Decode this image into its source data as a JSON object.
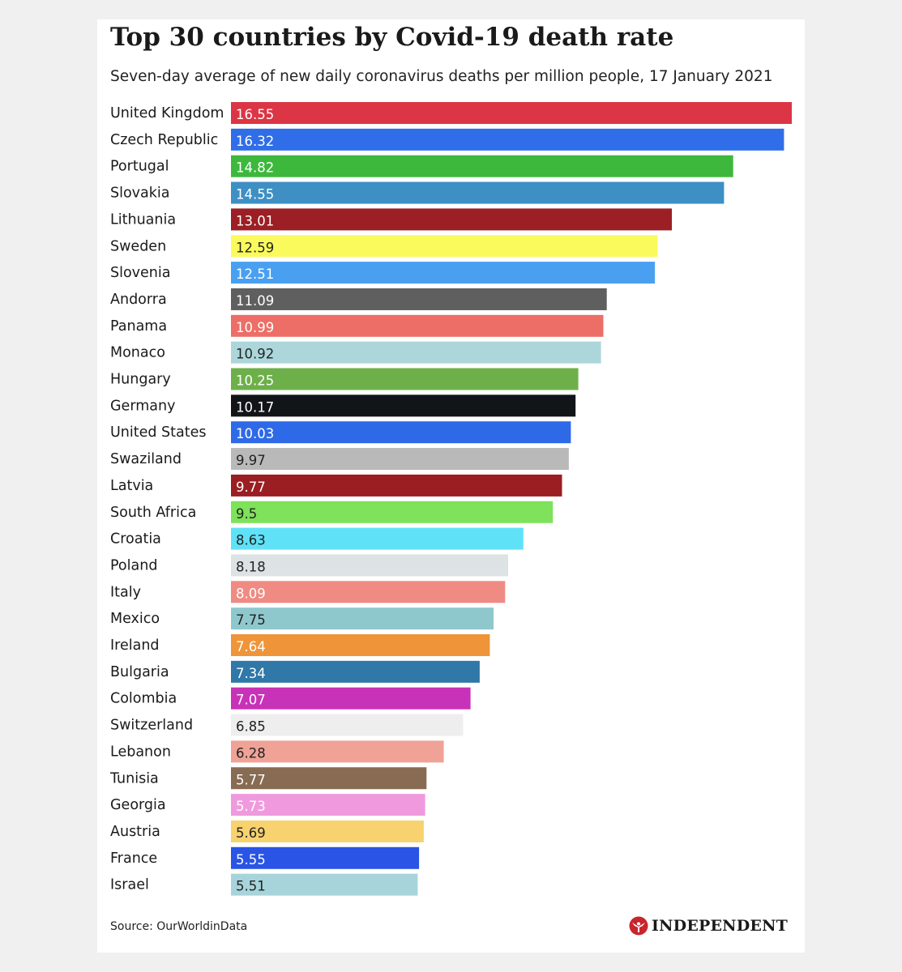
{
  "chart_data": {
    "type": "bar",
    "orientation": "horizontal",
    "title": "Top 30 countries by Covid-19 death rate",
    "subtitle": "Seven-day average of new daily coronavirus deaths per million people, 17 January 2021",
    "categories": [
      "United Kingdom",
      "Czech Republic",
      "Portugal",
      "Slovakia",
      "Lithuania",
      "Sweden",
      "Slovenia",
      "Andorra",
      "Panama",
      "Monaco",
      "Hungary",
      "Germany",
      "United States",
      "Swaziland",
      "Latvia",
      "South Africa",
      "Croatia",
      "Poland",
      "Italy",
      "Mexico",
      "Ireland",
      "Bulgaria",
      "Colombia",
      "Switzerland",
      "Lebanon",
      "Tunisia",
      "Georgia",
      "Austria",
      "France",
      "Israel"
    ],
    "values": [
      16.55,
      16.32,
      14.82,
      14.55,
      13.01,
      12.59,
      12.51,
      11.09,
      10.99,
      10.92,
      10.25,
      10.17,
      10.03,
      9.97,
      9.77,
      9.5,
      8.63,
      8.18,
      8.09,
      7.75,
      7.64,
      7.34,
      7.07,
      6.85,
      6.28,
      5.77,
      5.73,
      5.69,
      5.55,
      5.51
    ],
    "value_labels": [
      "16.55",
      "16.32",
      "14.82",
      "14.55",
      "13.01",
      "12.59",
      "12.51",
      "11.09",
      "10.99",
      "10.92",
      "10.25",
      "10.17",
      "10.03",
      "9.97",
      "9.77",
      "9.5",
      "8.63",
      "8.18",
      "8.09",
      "7.75",
      "7.64",
      "7.34",
      "7.07",
      "6.85",
      "6.28",
      "5.77",
      "5.73",
      "5.69",
      "5.55",
      "5.51"
    ],
    "colors": [
      "#dc3545",
      "#2f6ee8",
      "#3db83d",
      "#3d8fc4",
      "#9b1f24",
      "#fafa5c",
      "#4aa0f0",
      "#5f5f5f",
      "#ec6e66",
      "#acd6da",
      "#6db04a",
      "#121517",
      "#2e6ae8",
      "#b9b9b9",
      "#9a1e22",
      "#7ee25a",
      "#5fe2f7",
      "#dde2e4",
      "#ef8b82",
      "#8fc8cc",
      "#ef9438",
      "#2f78a8",
      "#c832b8",
      "#eeeeee",
      "#f0a296",
      "#876b52",
      "#f09ade",
      "#f7d26e",
      "#2954e6",
      "#a7d4da"
    ],
    "label_colors": [
      "#ffffff",
      "#ffffff",
      "#ffffff",
      "#ffffff",
      "#ffffff",
      "#222222",
      "#ffffff",
      "#ffffff",
      "#ffffff",
      "#222222",
      "#ffffff",
      "#ffffff",
      "#ffffff",
      "#222222",
      "#ffffff",
      "#222222",
      "#222222",
      "#222222",
      "#ffffff",
      "#222222",
      "#ffffff",
      "#ffffff",
      "#ffffff",
      "#222222",
      "#222222",
      "#ffffff",
      "#ffffff",
      "#222222",
      "#ffffff",
      "#222222"
    ],
    "xlim": [
      0,
      16.55
    ],
    "grid": false,
    "legend": "none"
  },
  "footer": {
    "source": "Source: OurWorldinData",
    "brand": "INDEPENDENT"
  },
  "colors": {
    "background": "#f0f0f0",
    "card": "#ffffff",
    "brand_accent": "#c8252d"
  }
}
